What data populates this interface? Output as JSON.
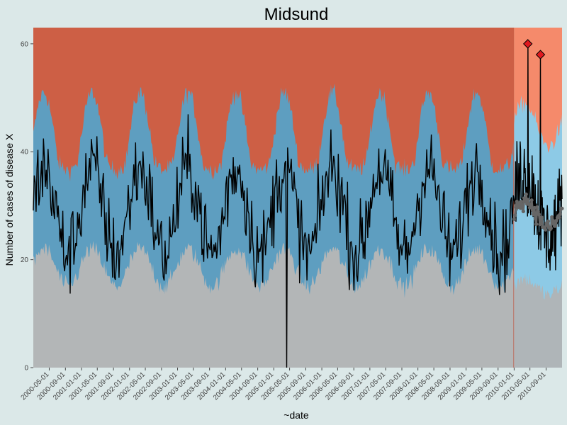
{
  "chart_data": {
    "type": "line",
    "title": "Midsund",
    "xlabel": "~date",
    "ylabel": "Number of cases of disease X",
    "xlim": [
      "2000-01-01",
      "2010-12-31"
    ],
    "ylim": [
      0,
      63
    ],
    "yticks": [
      0,
      20,
      40,
      60
    ],
    "ytick_labels": [
      "0",
      "20",
      "40",
      "60"
    ],
    "xticks": [
      "2000-05-01",
      "2000-09-01",
      "2001-01-01",
      "2001-05-01",
      "2001-09-01",
      "2002-01-01",
      "2002-05-01",
      "2002-09-01",
      "2003-01-01",
      "2003-05-01",
      "2003-09-01",
      "2004-01-01",
      "2004-05-01",
      "2004-09-01",
      "2005-01-01",
      "2005-05-01",
      "2005-09-01",
      "2006-01-01",
      "2006-05-01",
      "2006-09-01",
      "2007-01-01",
      "2007-05-01",
      "2007-09-01",
      "2008-01-01",
      "2008-05-01",
      "2008-09-01",
      "2009-01-01",
      "2009-05-01",
      "2009-09-01",
      "2010-01-01",
      "2010-05-01",
      "2010-09-01"
    ],
    "forecast_start": "2010-01-01",
    "colors": {
      "background": "#dbe8e8",
      "panel_low_baseline": "#b3b6b7",
      "panel_normal": "#5e9ec0",
      "panel_high": "#cd5f45",
      "panel_low_forecast": "#afb5b8",
      "panel_normal_forecast": "#8dcae6",
      "panel_high_forecast": "#f58a6b",
      "line": "#000000",
      "forecast_line": "#666666",
      "outbreak_marker": "#e0191f"
    },
    "outbreaks": [
      {
        "date": "2010-04-15",
        "value": 60
      },
      {
        "date": "2010-07-20",
        "value": 58
      }
    ],
    "notable_points": [
      {
        "date": "2005-04-10",
        "value": 0
      }
    ]
  }
}
